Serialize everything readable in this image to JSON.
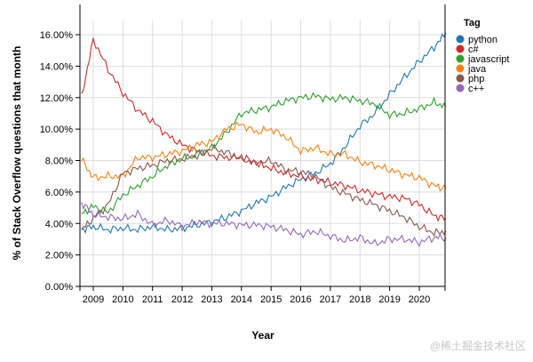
{
  "chart_data": {
    "type": "line",
    "title": "",
    "xlabel": "Year",
    "ylabel": "% of Stack Overflow questions that month",
    "ylim": [
      0,
      16.5
    ],
    "yticks": [
      "0.00%",
      "2.00%",
      "4.00%",
      "6.00%",
      "8.00%",
      "10.00%",
      "12.00%",
      "14.00%",
      "16.00%"
    ],
    "xticks": [
      "2009",
      "2010",
      "2011",
      "2012",
      "2013",
      "2014",
      "2015",
      "2016",
      "2017",
      "2018",
      "2019",
      "2020"
    ],
    "grid": true,
    "legend_position": "right",
    "legend_title": "Tag",
    "x": [
      2008.6,
      2009.0,
      2009.5,
      2010.0,
      2010.5,
      2011.0,
      2011.5,
      2012.0,
      2012.5,
      2013.0,
      2013.5,
      2014.0,
      2014.5,
      2015.0,
      2015.5,
      2016.0,
      2016.5,
      2017.0,
      2017.5,
      2018.0,
      2018.5,
      2019.0,
      2019.5,
      2020.0,
      2020.5,
      2020.9
    ],
    "series": [
      {
        "name": "python",
        "color": "#1f77b4",
        "values": [
          3.6,
          3.8,
          3.6,
          3.7,
          3.6,
          3.8,
          3.6,
          3.7,
          3.9,
          4.1,
          4.4,
          4.8,
          5.3,
          5.7,
          6.3,
          6.8,
          7.2,
          7.8,
          8.9,
          10.2,
          11.0,
          12.2,
          13.3,
          14.3,
          15.2,
          16.1
        ]
      },
      {
        "name": "c#",
        "color": "#d62728",
        "values": [
          12.0,
          15.7,
          13.8,
          12.3,
          11.2,
          10.5,
          9.6,
          9.0,
          8.6,
          8.3,
          8.2,
          8.2,
          7.9,
          7.5,
          7.2,
          7.0,
          6.8,
          6.6,
          6.4,
          6.1,
          5.9,
          5.7,
          5.6,
          5.2,
          4.5,
          4.3
        ]
      },
      {
        "name": "javascript",
        "color": "#2ca02c",
        "values": [
          4.6,
          5.1,
          4.7,
          5.8,
          6.4,
          7.0,
          7.7,
          8.1,
          8.4,
          8.8,
          9.8,
          11.0,
          11.2,
          11.4,
          11.8,
          12.0,
          12.1,
          11.9,
          12.0,
          11.8,
          11.6,
          10.9,
          11.0,
          11.3,
          11.7,
          11.4
        ]
      },
      {
        "name": "java",
        "color": "#ff7f0e",
        "values": [
          8.1,
          6.9,
          7.0,
          7.0,
          8.2,
          8.2,
          8.4,
          8.6,
          9.0,
          9.2,
          10.0,
          10.3,
          9.8,
          10.0,
          9.5,
          8.6,
          8.8,
          8.4,
          8.4,
          7.9,
          7.7,
          7.4,
          7.1,
          6.9,
          6.4,
          6.2
        ]
      },
      {
        "name": "php",
        "color": "#8c564b",
        "values": [
          3.6,
          4.3,
          5.2,
          7.2,
          7.5,
          7.7,
          8.0,
          8.1,
          8.3,
          8.8,
          8.5,
          8.1,
          7.8,
          8.0,
          7.4,
          7.3,
          7.0,
          6.3,
          5.9,
          5.5,
          5.2,
          4.8,
          4.4,
          3.8,
          3.4,
          3.5
        ]
      },
      {
        "name": "c++",
        "color": "#9467bd",
        "values": [
          5.3,
          4.6,
          4.4,
          4.3,
          4.6,
          3.9,
          4.2,
          3.8,
          4.1,
          4.0,
          4.0,
          3.9,
          3.9,
          3.8,
          3.6,
          3.3,
          3.5,
          3.2,
          2.9,
          3.1,
          2.7,
          3.0,
          3.0,
          2.8,
          3.1,
          3.1
        ]
      }
    ]
  },
  "watermark": "@稀土掘金技术社区"
}
